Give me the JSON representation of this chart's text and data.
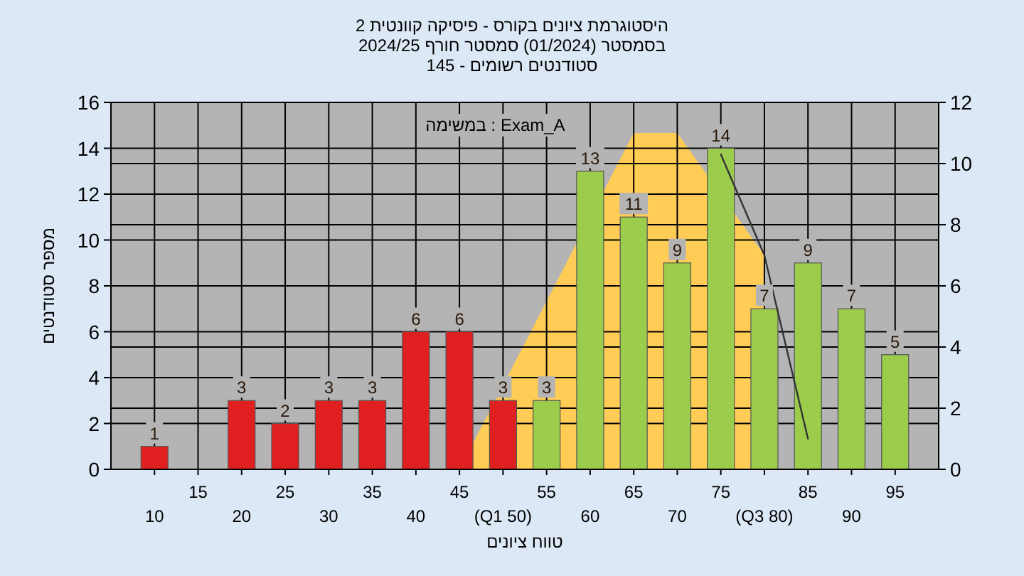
{
  "chart_data": {
    "type": "bar",
    "title": "היסטוגרמת ציונים בקורס - פיסיקה קוונטית 2",
    "subtitle": "בסמסטר  (01/2024)  סמסטר חורף 2024/25",
    "annotations": [
      "סטודנטים רשומים - 145",
      "במשימה : Exam_A"
    ],
    "xlabel": "טווח ציונים",
    "ylabel": "מספר סטודנטים",
    "categories": [
      "10",
      "15",
      "20",
      "25",
      "30",
      "35",
      "40",
      "45",
      "(Q1 50)",
      "55",
      "60",
      "65",
      "70",
      "75",
      "(Q3 80)",
      "85",
      "90",
      "95"
    ],
    "series": [
      {
        "type": "area",
        "axis": "y2",
        "color": "#ffcc55",
        "values": [
          null,
          null,
          null,
          null,
          null,
          null,
          null,
          0,
          null,
          5.5,
          null,
          11,
          11,
          null,
          7,
          null,
          null,
          null
        ]
      },
      {
        "type": "line",
        "axis": "y2",
        "color": "#333333",
        "values": [
          null,
          null,
          null,
          null,
          null,
          null,
          null,
          null,
          null,
          null,
          null,
          null,
          null,
          10.3,
          7,
          1,
          null,
          null
        ]
      },
      {
        "values": [
          1,
          null,
          3,
          2,
          3,
          3,
          6,
          6,
          3,
          3,
          13,
          11,
          9,
          14,
          7,
          9,
          7,
          5
        ],
        "value_labels": [
          "1",
          null,
          "3",
          "2",
          "3",
          "3",
          "6",
          "6",
          "3",
          "3",
          "13",
          "11",
          "9",
          "14",
          "7",
          "9",
          "7",
          "5"
        ],
        "colors": [
          "#e02020",
          null,
          "#e02020",
          "#e02020",
          "#e02020",
          "#e02020",
          "#e02020",
          "#e02020",
          "#e02020",
          "#9ccc4c",
          "#9ccc4c",
          "#9ccc4c",
          "#9ccc4c",
          "#9ccc4c",
          "#9ccc4c",
          "#9ccc4c",
          "#9ccc4c",
          "#9ccc4c"
        ]
      }
    ],
    "grid": true,
    "ylim": [
      0,
      16
    ],
    "yticks": [
      0,
      2,
      4,
      6,
      8,
      10,
      12,
      14,
      16
    ],
    "y2lim": [
      0,
      12
    ],
    "y2ticks": [
      0,
      2,
      4,
      6,
      8,
      10,
      12
    ]
  }
}
